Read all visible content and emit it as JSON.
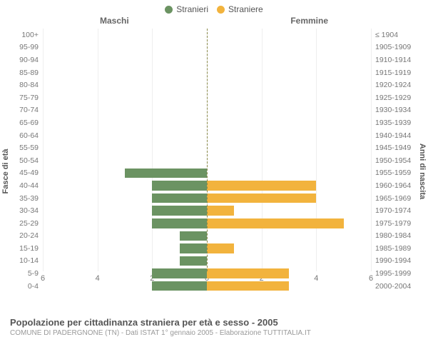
{
  "legend": {
    "male_label": "Stranieri",
    "female_label": "Straniere",
    "male_color": "#6b9362",
    "female_color": "#f2b33d"
  },
  "headers": {
    "male": "Maschi",
    "female": "Femmine"
  },
  "ylabel_left": "Fasce di età",
  "ylabel_right": "Anni di nascita",
  "xaxis": {
    "max": 6,
    "ticks": [
      6,
      4,
      2,
      0,
      2,
      4,
      6
    ]
  },
  "rows": [
    {
      "age": "100+",
      "birth": "≤ 1904",
      "male": 0,
      "female": 0
    },
    {
      "age": "95-99",
      "birth": "1905-1909",
      "male": 0,
      "female": 0
    },
    {
      "age": "90-94",
      "birth": "1910-1914",
      "male": 0,
      "female": 0
    },
    {
      "age": "85-89",
      "birth": "1915-1919",
      "male": 0,
      "female": 0
    },
    {
      "age": "80-84",
      "birth": "1920-1924",
      "male": 0,
      "female": 0
    },
    {
      "age": "75-79",
      "birth": "1925-1929",
      "male": 0,
      "female": 0
    },
    {
      "age": "70-74",
      "birth": "1930-1934",
      "male": 0,
      "female": 0
    },
    {
      "age": "65-69",
      "birth": "1935-1939",
      "male": 0,
      "female": 0
    },
    {
      "age": "60-64",
      "birth": "1940-1944",
      "male": 0,
      "female": 0
    },
    {
      "age": "55-59",
      "birth": "1945-1949",
      "male": 0,
      "female": 0
    },
    {
      "age": "50-54",
      "birth": "1950-1954",
      "male": 0,
      "female": 0
    },
    {
      "age": "45-49",
      "birth": "1955-1959",
      "male": 3,
      "female": 0
    },
    {
      "age": "40-44",
      "birth": "1960-1964",
      "male": 2,
      "female": 4
    },
    {
      "age": "35-39",
      "birth": "1965-1969",
      "male": 2,
      "female": 4
    },
    {
      "age": "30-34",
      "birth": "1970-1974",
      "male": 2,
      "female": 1
    },
    {
      "age": "25-29",
      "birth": "1975-1979",
      "male": 2,
      "female": 5
    },
    {
      "age": "20-24",
      "birth": "1980-1984",
      "male": 1,
      "female": 0
    },
    {
      "age": "15-19",
      "birth": "1985-1989",
      "male": 1,
      "female": 1
    },
    {
      "age": "10-14",
      "birth": "1990-1994",
      "male": 1,
      "female": 0
    },
    {
      "age": "5-9",
      "birth": "1995-1999",
      "male": 2,
      "female": 3
    },
    {
      "age": "0-4",
      "birth": "2000-2004",
      "male": 2,
      "female": 3
    }
  ],
  "colors": {
    "tick": "#777777",
    "grid": "#eeeeee",
    "centerline": "#8a8a4a",
    "background": "#ffffff",
    "title": "#555555",
    "subtitle": "#999999"
  },
  "title": "Popolazione per cittadinanza straniera per età e sesso - 2005",
  "subtitle": "COMUNE DI PADERGNONE (TN) - Dati ISTAT 1° gennaio 2005 - Elaborazione TUTTITALIA.IT"
}
